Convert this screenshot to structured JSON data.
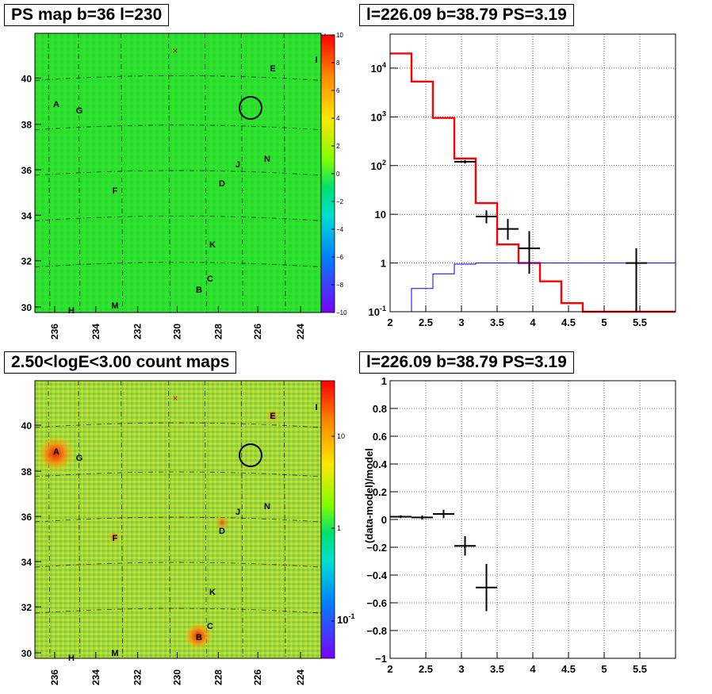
{
  "titles": {
    "ps_map": "PS map b=36 l=230",
    "spectrum": "l=226.09 b=38.79 PS=3.19",
    "count_map": "2.50<logE<3.00 count maps",
    "residual": "l=226.09 b=38.79 PS=3.19"
  },
  "chart_data": [
    {
      "id": "ps_map",
      "type": "heatmap",
      "title": "PS map b=36 l=230",
      "xticks": [
        "236",
        "234",
        "232",
        "230",
        "228",
        "226",
        "224"
      ],
      "yticks": [
        "30",
        "32",
        "34",
        "36",
        "38",
        "40"
      ],
      "colorbar": {
        "min": -10,
        "max": 10,
        "ticks": [
          "10",
          "8",
          "6",
          "4",
          "2",
          "0",
          "−2",
          "−4",
          "−6",
          "−8",
          "−10"
        ]
      },
      "sources": [
        "A",
        "G",
        "E",
        "I",
        "J",
        "N",
        "D",
        "F",
        "K",
        "C",
        "B",
        "H",
        "M"
      ],
      "colors": {
        "background": "#2de12d"
      }
    },
    {
      "id": "spectrum",
      "type": "line",
      "title": "l=226.09 b=38.79 PS=3.19",
      "xlim": [
        2,
        6
      ],
      "ylim": [
        0.1,
        50000
      ],
      "ylog": true,
      "xticks": [
        "2",
        "2.5",
        "3",
        "3.5",
        "4",
        "4.5",
        "5",
        "5.5"
      ],
      "yticks": [
        "10^-1",
        "1",
        "10",
        "10^2",
        "10^3",
        "10^4"
      ],
      "series": [
        {
          "color": "#ff0000",
          "steps": [
            [
              2.0,
              2.3,
              20000
            ],
            [
              2.3,
              2.6,
              5300
            ],
            [
              2.6,
              2.9,
              950
            ],
            [
              2.9,
              3.2,
              140
            ],
            [
              3.2,
              3.5,
              17
            ],
            [
              3.5,
              3.8,
              2.4
            ],
            [
              3.8,
              4.1,
              1.0
            ],
            [
              4.1,
              4.4,
              0.42
            ],
            [
              4.4,
              4.7,
              0.15
            ],
            [
              4.7,
              6.0,
              0.1
            ]
          ]
        },
        {
          "color": "#0000ff",
          "steps": [
            [
              2.0,
              2.3,
              0.1
            ],
            [
              2.3,
              2.6,
              0.3
            ],
            [
              2.6,
              2.9,
              0.6
            ],
            [
              2.9,
              3.2,
              0.95
            ],
            [
              3.2,
              6.0,
              1.0
            ]
          ]
        }
      ],
      "points": [
        {
          "x": 3.05,
          "xerr": 0.15,
          "y": 120,
          "ylo": 110,
          "yhi": 130
        },
        {
          "x": 3.35,
          "xerr": 0.15,
          "y": 9,
          "ylo": 6.5,
          "yhi": 12
        },
        {
          "x": 3.65,
          "xerr": 0.15,
          "y": 5,
          "ylo": 3,
          "yhi": 8
        },
        {
          "x": 3.95,
          "xerr": 0.15,
          "y": 2,
          "ylo": 0.6,
          "yhi": 4.5
        },
        {
          "x": 5.45,
          "xerr": 0.15,
          "y": 1,
          "ylo": 0.1,
          "yhi": 2
        }
      ]
    },
    {
      "id": "count_map",
      "type": "heatmap",
      "title": "2.50<logE<3.00 count maps",
      "xticks": [
        "236",
        "234",
        "232",
        "230",
        "228",
        "226",
        "224"
      ],
      "yticks": [
        "30",
        "32",
        "34",
        "36",
        "38",
        "40"
      ],
      "colorbar": {
        "log": true,
        "ticks": [
          "10",
          "1",
          "10^-1"
        ]
      },
      "sources": [
        "A",
        "G",
        "E",
        "I",
        "J",
        "N",
        "D",
        "F",
        "K",
        "C",
        "B",
        "H",
        "M"
      ],
      "colors": {
        "background": "#9cd63a"
      }
    },
    {
      "id": "residual",
      "type": "scatter",
      "title": "l=226.09 b=38.79 PS=3.19",
      "ylabel": "(data-model)/model",
      "xlim": [
        2,
        6
      ],
      "ylim": [
        -1,
        1
      ],
      "xticks": [
        "2",
        "2.5",
        "3",
        "3.5",
        "4",
        "4.5",
        "5",
        "5.5"
      ],
      "yticks": [
        "1",
        "0.8",
        "0.6",
        "0.4",
        "0.2",
        "0",
        "−0.2",
        "−0.4",
        "−0.6",
        "−0.8",
        "−1"
      ],
      "points": [
        {
          "x": 2.15,
          "xerr": 0.15,
          "y": 0.02,
          "yerr": 0.01
        },
        {
          "x": 2.45,
          "xerr": 0.15,
          "y": 0.015,
          "yerr": 0.015
        },
        {
          "x": 2.75,
          "xerr": 0.15,
          "y": 0.04,
          "yerr": 0.03
        },
        {
          "x": 3.05,
          "xerr": 0.15,
          "y": -0.19,
          "yerr": 0.07
        },
        {
          "x": 3.35,
          "xerr": 0.15,
          "y": -0.49,
          "yerr": 0.17
        }
      ]
    }
  ]
}
